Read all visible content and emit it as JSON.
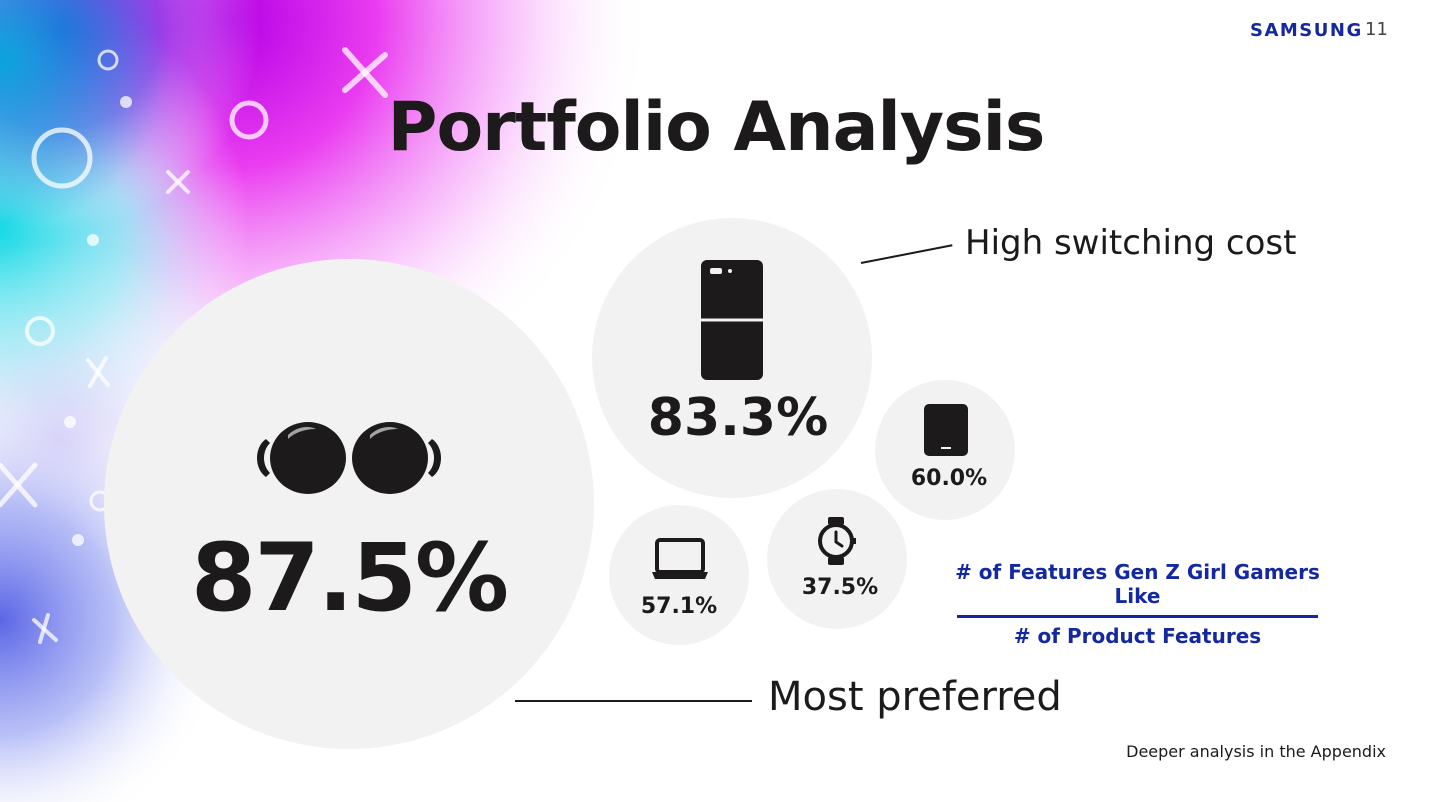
{
  "header": {
    "logo": "SAMSUNG",
    "page_number": "11"
  },
  "title": "Portfolio Analysis",
  "bubbles": [
    {
      "icon": "earbuds-icon",
      "value": "87.5%"
    },
    {
      "icon": "foldable-phone-icon",
      "value": "83.3%"
    },
    {
      "icon": "tablet-icon",
      "value": "60.0%"
    },
    {
      "icon": "laptop-icon",
      "value": "57.1%"
    },
    {
      "icon": "smartwatch-icon",
      "value": "37.5%"
    }
  ],
  "annotations": {
    "high_switching_cost": "High switching cost",
    "most_preferred": "Most preferred"
  },
  "formula": {
    "numerator": "# of Features Gen Z Girl Gamers Like",
    "denominator": "# of Product Features"
  },
  "footer": "Deeper analysis in the Appendix",
  "colors": {
    "brand": "#1428a0",
    "bubble": "#f2f2f2",
    "text": "#1c1a1b"
  }
}
